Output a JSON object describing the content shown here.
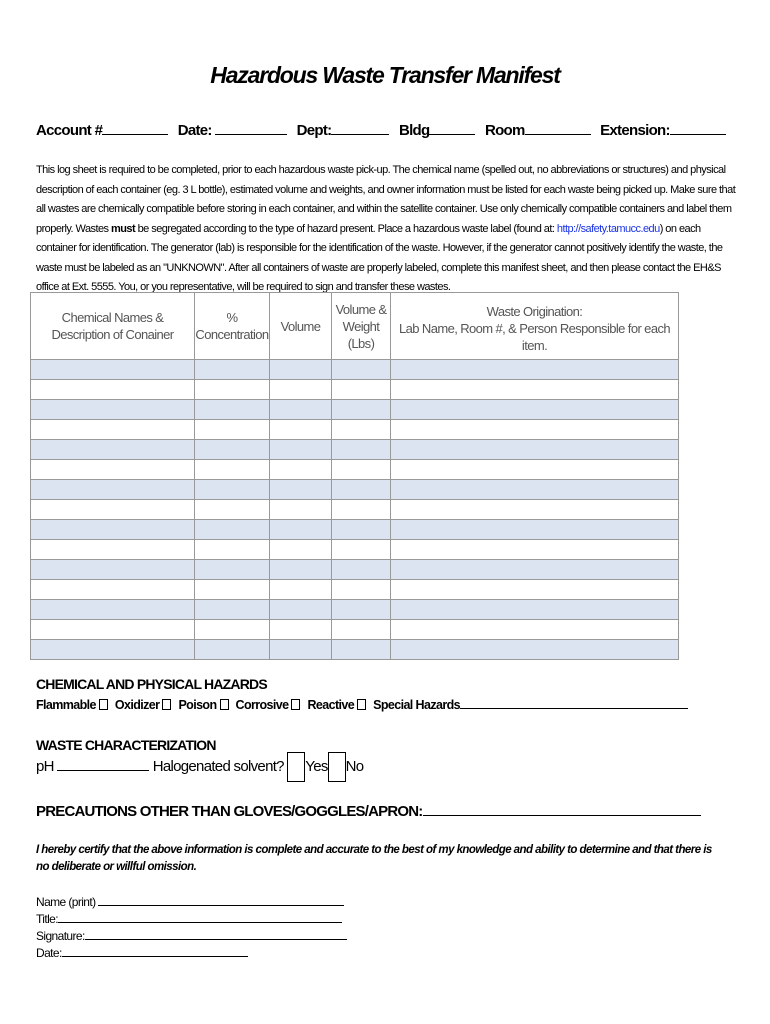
{
  "title": "Hazardous Waste Transfer Manifest",
  "fields": {
    "account": "Account #",
    "date": "Date:",
    "dept": "Dept:",
    "bldg": "Bldg",
    "room": "Room",
    "extension": "Extension:"
  },
  "intro": {
    "part1": "This log sheet is required to be completed, prior to each hazardous waste pick-up. The chemical name (spelled out, no abbreviations or structures) and physical description of each container (eg. 3 L bottle), estimated volume and weights, and owner information must be listed for each waste being picked up. Make sure that all wastes are chemically compatible before storing in each container, and within the satellite container. Use only chemically compatible containers and label them properly. Wastes ",
    "bold": "must",
    "part2": " be segregated according to the type of hazard present. Place a hazardous waste label (found at: ",
    "link": "http://safety.tamucc.edu",
    "part3": ") on each container for identification. The generator (lab) is responsible for the identification of the waste. However, if the generator cannot positively identify the waste, the waste must be labeled as an \"UNKNOWN\". After all containers of waste are properly labeled, complete this manifest sheet, and then please contact the EH&S office at Ext. 5555. You, or you representative, will be required to sign and transfer these wastes."
  },
  "table": {
    "headers": [
      [
        "Chemical Names &",
        "Description of Conainer"
      ],
      [
        "%",
        "Concentration"
      ],
      [
        "Volume"
      ],
      [
        "Volume &",
        "Weight",
        "(Lbs)"
      ],
      [
        "Waste Origination:",
        "Lab Name, Room #, & Person Responsible for each item."
      ]
    ],
    "row_count": 15,
    "row_color": "#dbe4f0"
  },
  "hazards": {
    "heading": "CHEMICAL AND PHYSICAL HAZARDS",
    "options": [
      "Flammable",
      "Oxidizer",
      "Poison",
      "Corrosive",
      "Reactive"
    ],
    "special": "Special Hazards"
  },
  "waste": {
    "heading": "WASTE CHARACTERIZATION",
    "ph": "pH",
    "halogenated": "Halogenated solvent?",
    "yes": "Yes",
    "no": "No"
  },
  "precautions": "PRECAUTIONS OTHER THAN GLOVES/GOGGLES/APRON:",
  "certify": "I hereby certify that the above information is complete and accurate to the best of my knowledge and ability to determine and that there is no deliberate or willful omission.",
  "signature": {
    "name": "Name (print)",
    "title": "Title:",
    "signature": "Signature:",
    "date": "Date:"
  }
}
